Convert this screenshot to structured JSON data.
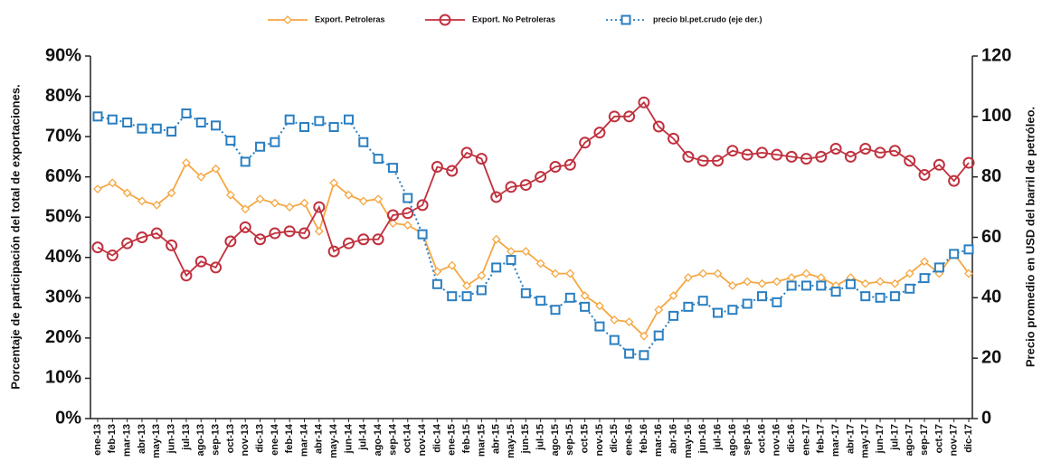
{
  "chart_data": {
    "type": "line",
    "categories": [
      "ene-13",
      "feb-13",
      "mar-13",
      "abr-13",
      "may-13",
      "jun-13",
      "jul-13",
      "ago-13",
      "sep-13",
      "oct-13",
      "nov-13",
      "dic-13",
      "ene-14",
      "feb-14",
      "mar-14",
      "abr-14",
      "may-14",
      "jun-14",
      "jul-14",
      "ago-14",
      "sep-14",
      "oct-14",
      "nov-14",
      "dic-14",
      "ene-15",
      "feb-15",
      "mar-15",
      "abr-15",
      "may-15",
      "jun-15",
      "jul-15",
      "ago-15",
      "sep-15",
      "oct-15",
      "nov-15",
      "dic-15",
      "ene-16",
      "feb-16",
      "mar-16",
      "abr-16",
      "may-16",
      "jun-16",
      "jul-16",
      "ago-16",
      "sep-16",
      "oct-16",
      "nov-16",
      "dic-16",
      "ene-17",
      "feb-17",
      "mar-17",
      "abr-17",
      "may-17",
      "jun-17",
      "jul-17",
      "ago-17",
      "sep-17",
      "oct-17",
      "nov-17",
      "dic-17"
    ],
    "series": [
      {
        "name": "Export. Petroleras",
        "color": "#f5a742",
        "marker": "diamond",
        "values": [
          57,
          58.5,
          56,
          54,
          53,
          56,
          63.5,
          60,
          62,
          55.5,
          52,
          54.5,
          53.5,
          52.5,
          53.5,
          46.5,
          58.5,
          55.5,
          54,
          54.5,
          48.5,
          48,
          46,
          36.5,
          38,
          33,
          35.5,
          44.5,
          41.5,
          41.5,
          38.5,
          36,
          36,
          30.5,
          28,
          24.5,
          24,
          20.5,
          27,
          30.5,
          35,
          36,
          36,
          33,
          34,
          33.5,
          34,
          35,
          36,
          35,
          33,
          35,
          33.5,
          34,
          33.5,
          36,
          39,
          36,
          41,
          36
        ]
      },
      {
        "name": "Export. No Petroleras",
        "color": "#c0313e",
        "marker": "circle",
        "values": [
          42.5,
          40.5,
          43.5,
          45,
          46,
          43,
          35.5,
          39,
          37.5,
          44,
          47.5,
          44.5,
          46,
          46.5,
          46,
          52.5,
          41.5,
          43.5,
          44.5,
          44.5,
          50.5,
          51,
          53,
          62.5,
          61.5,
          66,
          64.5,
          55,
          57.5,
          58,
          60,
          62.5,
          63,
          68.5,
          71,
          75,
          75,
          78.5,
          72.5,
          69.5,
          65,
          64,
          64,
          66.5,
          65.5,
          66,
          65.5,
          65,
          64.5,
          65,
          67,
          65,
          67,
          66,
          66.5,
          64,
          60.5,
          63,
          59,
          63.5
        ]
      },
      {
        "name": "precio bl.pet.crudo (eje der.)",
        "color": "#2a7fc1",
        "marker": "square",
        "dashed": true,
        "axis": "y2",
        "values": [
          100,
          99,
          98,
          96,
          96,
          95,
          101,
          98,
          97,
          92,
          85,
          90,
          91.5,
          99,
          96.5,
          98.5,
          96.5,
          99,
          91.5,
          86,
          83,
          73,
          61,
          44.5,
          40.5,
          40.5,
          42.5,
          50,
          52.5,
          41.5,
          39,
          36,
          40,
          37,
          30.5,
          26,
          21.5,
          21,
          27.5,
          34,
          37,
          39,
          35,
          36,
          38,
          40.5,
          38.5,
          44,
          44,
          44,
          42,
          44.5,
          40.5,
          40,
          40.5,
          43,
          46.5,
          50,
          54.5,
          56
        ]
      }
    ],
    "ylabel": "Porcentaje de participación del total de exportaciones.",
    "y2label": "Precio promedio en USD del barril de petróleo.",
    "ylim": [
      0,
      90
    ],
    "yticks": [
      {
        "value": 0,
        "label": "0%"
      },
      {
        "value": 10,
        "label": "10%"
      },
      {
        "value": 20,
        "label": "20%"
      },
      {
        "value": 30,
        "label": "30%"
      },
      {
        "value": 40,
        "label": "40%"
      },
      {
        "value": 50,
        "label": "50%"
      },
      {
        "value": 60,
        "label": "60%"
      },
      {
        "value": 70,
        "label": "70%"
      },
      {
        "value": 80,
        "label": "80%"
      },
      {
        "value": 90,
        "label": "90%"
      }
    ],
    "y2lim": [
      0,
      120
    ],
    "y2ticks": [
      0,
      20,
      40,
      60,
      80,
      100,
      120
    ],
    "legend": "top",
    "grid": false
  }
}
